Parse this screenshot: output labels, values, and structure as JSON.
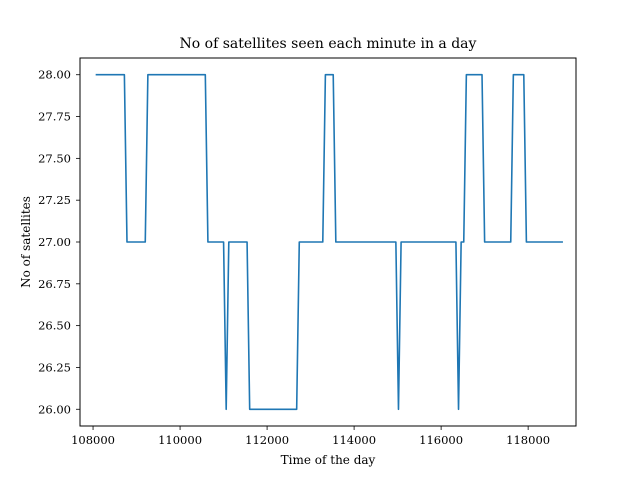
{
  "chart_data": {
    "type": "line",
    "title": "No of satellites seen each minute in a day",
    "xlabel": "Time of the day",
    "ylabel": "No of satellites",
    "xlim": [
      107700,
      119100
    ],
    "ylim": [
      25.9,
      28.1
    ],
    "xticks": [
      108000,
      110000,
      112000,
      114000,
      116000,
      118000
    ],
    "yticks": [
      "26.00",
      "26.25",
      "26.50",
      "26.75",
      "27.00",
      "27.25",
      "27.50",
      "27.75",
      "28.00"
    ],
    "grid": false,
    "legend": "none",
    "color": "#1f77b4",
    "series": [
      {
        "x": [
          108060,
          108720,
          108780,
          109200,
          109260,
          110580,
          110640,
          110940,
          111000,
          111060,
          111120,
          111540,
          111600,
          112680,
          112740,
          113280,
          113340,
          113520,
          113580,
          114960,
          115020,
          115080,
          115140,
          116340,
          116400,
          116460,
          116520,
          116580,
          116640,
          116940,
          117000,
          117600,
          117660,
          117900,
          117960,
          118800
        ],
        "y": [
          28,
          28,
          27,
          27,
          28,
          28,
          27,
          27,
          27,
          26,
          27,
          27,
          26,
          26,
          27,
          27,
          28,
          28,
          27,
          27,
          26,
          27,
          27,
          27,
          26,
          27,
          27,
          28,
          28,
          28,
          27,
          27,
          28,
          28,
          27,
          27
        ]
      }
    ]
  }
}
